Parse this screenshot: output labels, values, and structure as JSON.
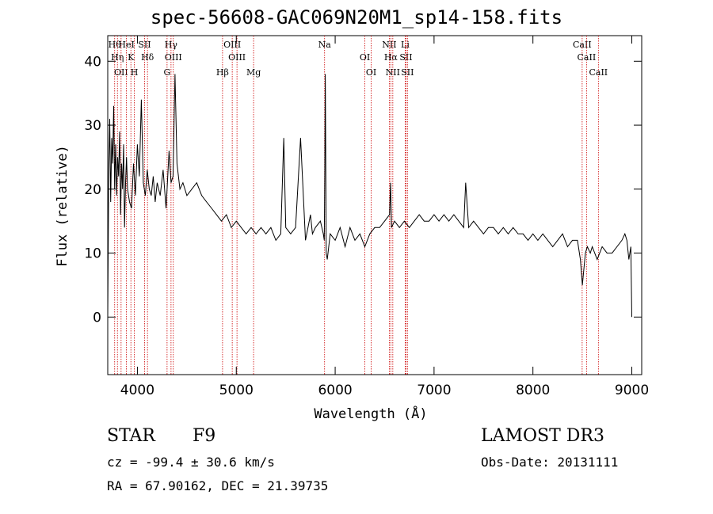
{
  "chart_data": {
    "type": "line",
    "title": "spec-56608-GAC069N20M1_sp14-158.fits",
    "xlabel": "Wavelength (Å)",
    "ylabel": "Flux (relative)",
    "xlim": [
      3700,
      9100
    ],
    "ylim": [
      -9,
      44
    ],
    "x_ticks": [
      4000,
      5000,
      6000,
      7000,
      8000,
      9000
    ],
    "y_ticks": [
      0,
      10,
      20,
      30,
      40
    ],
    "line_color": "#000000",
    "marker_color": "#cc0000",
    "series": [
      {
        "x": [
          3700,
          3710,
          3720,
          3730,
          3740,
          3750,
          3760,
          3770,
          3780,
          3790,
          3800,
          3810,
          3820,
          3830,
          3840,
          3850,
          3860,
          3870,
          3880,
          3890,
          3900,
          3920,
          3940,
          3960,
          3980,
          4000,
          4020,
          4040,
          4060,
          4080,
          4100,
          4120,
          4140,
          4160,
          4180,
          4200,
          4230,
          4260,
          4290,
          4300,
          4320,
          4340,
          4360,
          4380,
          4400,
          4430,
          4460,
          4500,
          4550,
          4600,
          4650,
          4700,
          4750,
          4800,
          4850,
          4900,
          4950,
          5000,
          5050,
          5100,
          5150,
          5200,
          5250,
          5300,
          5350,
          5400,
          5450,
          5480,
          5500,
          5550,
          5600,
          5650,
          5700,
          5750,
          5770,
          5800,
          5850,
          5880,
          5890,
          5895,
          5900,
          5910,
          5920,
          5950,
          6000,
          6050,
          6100,
          6150,
          6200,
          6250,
          6300,
          6350,
          6400,
          6450,
          6500,
          6550,
          6560,
          6570,
          6600,
          6650,
          6700,
          6750,
          6800,
          6850,
          6900,
          6950,
          7000,
          7050,
          7100,
          7150,
          7200,
          7250,
          7300,
          7320,
          7350,
          7400,
          7450,
          7500,
          7550,
          7600,
          7650,
          7700,
          7750,
          7800,
          7850,
          7900,
          7950,
          8000,
          8050,
          8100,
          8150,
          8200,
          8250,
          8300,
          8350,
          8400,
          8450,
          8480,
          8500,
          8530,
          8550,
          8580,
          8600,
          8650,
          8700,
          8750,
          8800,
          8850,
          8900,
          8930,
          8950,
          8970,
          8990,
          9000
        ],
        "y": [
          0,
          22,
          31,
          18,
          28,
          24,
          33,
          20,
          27,
          19,
          25,
          22,
          29,
          16,
          24,
          20,
          27,
          14,
          21,
          25,
          20,
          18,
          17,
          24,
          19,
          27,
          22,
          34,
          21,
          19,
          23,
          20,
          19,
          22,
          18,
          21,
          19,
          23,
          17,
          20,
          26,
          21,
          22,
          38,
          24,
          20,
          21,
          19,
          20,
          21,
          19,
          18,
          17,
          16,
          15,
          16,
          14,
          15,
          14,
          13,
          14,
          13,
          14,
          13,
          14,
          12,
          13,
          28,
          14,
          13,
          14,
          28,
          12,
          16,
          13,
          14,
          15,
          13,
          12,
          23,
          38,
          10,
          9,
          13,
          12,
          14,
          11,
          14,
          12,
          13,
          11,
          13,
          14,
          14,
          15,
          16,
          21,
          14,
          15,
          14,
          15,
          14,
          15,
          16,
          15,
          15,
          16,
          15,
          16,
          15,
          16,
          15,
          14,
          21,
          14,
          15,
          14,
          13,
          14,
          14,
          13,
          14,
          13,
          14,
          13,
          13,
          12,
          13,
          12,
          13,
          12,
          11,
          12,
          13,
          11,
          12,
          12,
          9,
          5,
          10,
          11,
          10,
          11,
          9,
          11,
          10,
          10,
          11,
          12,
          13,
          12,
          9,
          11,
          0
        ]
      }
    ],
    "line_markers": [
      {
        "x": 3770,
        "label": "Hθ"
      },
      {
        "x": 3798,
        "label": "Hη"
      },
      {
        "x": 3835,
        "label": "OII"
      },
      {
        "x": 3889,
        "label": "HeI"
      },
      {
        "x": 3934,
        "label": "K"
      },
      {
        "x": 3969,
        "label": "H"
      },
      {
        "x": 4072,
        "label": "SII"
      },
      {
        "x": 4102,
        "label": "Hδ"
      },
      {
        "x": 4300,
        "label": "G"
      },
      {
        "x": 4340,
        "label": "Hγ"
      },
      {
        "x": 4363,
        "label": "OIII"
      },
      {
        "x": 4861,
        "label": "Hβ"
      },
      {
        "x": 4959,
        "label": "OIII"
      },
      {
        "x": 5007,
        "label": "OIII"
      },
      {
        "x": 5175,
        "label": "Mg"
      },
      {
        "x": 5893,
        "label": "Na"
      },
      {
        "x": 6300,
        "label": "OI"
      },
      {
        "x": 6364,
        "label": "OI"
      },
      {
        "x": 6548,
        "label": "NII"
      },
      {
        "x": 6563,
        "label": "Hα"
      },
      {
        "x": 6583,
        "label": "NII"
      },
      {
        "x": 6708,
        "label": "Li"
      },
      {
        "x": 6716,
        "label": "SII"
      },
      {
        "x": 6731,
        "label": "SII"
      },
      {
        "x": 8498,
        "label": "CaII"
      },
      {
        "x": 8542,
        "label": "CaII"
      },
      {
        "x": 8662,
        "label": "CaII"
      }
    ]
  },
  "info": {
    "object_class": "STAR",
    "subclass": "F9",
    "survey": "LAMOST DR3",
    "redshift": "cz = -99.4 ± 30.6 km/s",
    "obs_date": "Obs-Date: 20131111",
    "coords": "RA =  67.90162, DEC =  21.39735"
  }
}
